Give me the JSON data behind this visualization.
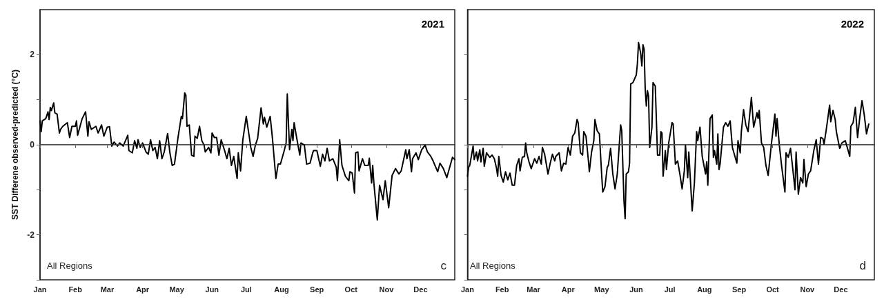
{
  "chart_data": [
    {
      "type": "line",
      "title": "2021",
      "ylabel": "SST Differene observed-predicted (°C)",
      "annotations": [
        "All Regions",
        "c"
      ],
      "xlim": [
        "2021-01-01",
        "2021-12-31"
      ],
      "xticks": [
        {
          "value": "2021-01-01",
          "label": "Jan"
        },
        {
          "value": "2021-02-01",
          "label": "Feb"
        },
        {
          "value": "2021-03-01",
          "label": "Mar"
        },
        {
          "value": "2021-04-01",
          "label": "Apr"
        },
        {
          "value": "2021-05-01",
          "label": "May"
        },
        {
          "value": "2021-06-01",
          "label": "Jun"
        },
        {
          "value": "2021-07-01",
          "label": "Jul"
        },
        {
          "value": "2021-08-01",
          "label": "Aug"
        },
        {
          "value": "2021-09-01",
          "label": "Sep"
        },
        {
          "value": "2021-10-01",
          "label": "Oct"
        },
        {
          "value": "2021-11-01",
          "label": "Nov"
        },
        {
          "value": "2021-12-01",
          "label": "Dec"
        }
      ],
      "ylim": [
        -3,
        3
      ],
      "yticks": [
        {
          "value": -3,
          "label": null
        },
        -2,
        {
          "value": -1,
          "label": null
        },
        0,
        {
          "value": 1,
          "label": null
        },
        2
      ],
      "grid": false,
      "marker": "none",
      "line_style": "solid",
      "ref_lines": [
        {
          "axis": "y",
          "value": 0,
          "color": "#555555",
          "line_style": "dashed"
        }
      ],
      "x": [
        "2021-01-01",
        "2021-01-02",
        "2021-01-03",
        "2021-01-06",
        "2021-01-08",
        "2021-01-09",
        "2021-01-10",
        "2021-01-11",
        "2021-01-13",
        "2021-01-14",
        "2021-01-16",
        "2021-01-18",
        "2021-01-19",
        "2021-01-21",
        "2021-01-25",
        "2021-01-27",
        "2021-01-29",
        "2021-02-01",
        "2021-02-02",
        "2021-02-03",
        "2021-02-07",
        "2021-02-10",
        "2021-02-12",
        "2021-02-13",
        "2021-02-15",
        "2021-02-19",
        "2021-02-21",
        "2021-02-24",
        "2021-02-26",
        "2021-03-01",
        "2021-03-03",
        "2021-03-05",
        "2021-03-07",
        "2021-03-10",
        "2021-03-12",
        "2021-03-15",
        "2021-03-19",
        "2021-03-20",
        "2021-03-23",
        "2021-03-25",
        "2021-03-27",
        "2021-03-28",
        "2021-03-30",
        "2021-04-01",
        "2021-04-04",
        "2021-04-06",
        "2021-04-08",
        "2021-04-10",
        "2021-04-12",
        "2021-04-14",
        "2021-04-16",
        "2021-04-18",
        "2021-04-20",
        "2021-04-23",
        "2021-04-25",
        "2021-04-27",
        "2021-04-29",
        "2021-05-02",
        "2021-05-05",
        "2021-05-06",
        "2021-05-08",
        "2021-05-09",
        "2021-05-10",
        "2021-05-12",
        "2021-05-14",
        "2021-05-16",
        "2021-05-17",
        "2021-05-19",
        "2021-05-21",
        "2021-05-23",
        "2021-05-25",
        "2021-05-26",
        "2021-05-29",
        "2021-05-31",
        "2021-06-01",
        "2021-06-03",
        "2021-06-05",
        "2021-06-07",
        "2021-06-09",
        "2021-06-12",
        "2021-06-14",
        "2021-06-16",
        "2021-06-18",
        "2021-06-20",
        "2021-06-23",
        "2021-06-24",
        "2021-06-26",
        "2021-06-28",
        "2021-07-01",
        "2021-07-03",
        "2021-07-05",
        "2021-07-07",
        "2021-07-09",
        "2021-07-11",
        "2021-07-14",
        "2021-07-16",
        "2021-07-17",
        "2021-07-19",
        "2021-07-22",
        "2021-07-24",
        "2021-07-27",
        "2021-07-29",
        "2021-07-31",
        "2021-08-03",
        "2021-08-05",
        "2021-08-06",
        "2021-08-08",
        "2021-08-10",
        "2021-08-11",
        "2021-08-12",
        "2021-08-14",
        "2021-08-17",
        "2021-08-18",
        "2021-08-21",
        "2021-08-23",
        "2021-08-26",
        "2021-08-28",
        "2021-08-29",
        "2021-09-01",
        "2021-09-04",
        "2021-09-06",
        "2021-09-08",
        "2021-09-10",
        "2021-09-12",
        "2021-09-15",
        "2021-09-18",
        "2021-09-19",
        "2021-09-21",
        "2021-09-23",
        "2021-09-26",
        "2021-09-29",
        "2021-09-30",
        "2021-10-02",
        "2021-10-04",
        "2021-10-05",
        "2021-10-07",
        "2021-10-08",
        "2021-10-11",
        "2021-10-13",
        "2021-10-16",
        "2021-10-17",
        "2021-10-19",
        "2021-10-20",
        "2021-10-21",
        "2021-10-24",
        "2021-10-26",
        "2021-10-29",
        "2021-10-31",
        "2021-11-03",
        "2021-11-06",
        "2021-11-09",
        "2021-11-12",
        "2021-11-14",
        "2021-11-18",
        "2021-11-19",
        "2021-11-21",
        "2021-11-23",
        "2021-11-24",
        "2021-11-27",
        "2021-11-29",
        "2021-12-02",
        "2021-12-05",
        "2021-12-07",
        "2021-12-10",
        "2021-12-12",
        "2021-12-16",
        "2021-12-18",
        "2021-12-21",
        "2021-12-24",
        "2021-12-29",
        "2021-12-31"
      ],
      "series": [
        {
          "color": "#000000",
          "values": [
            0.53,
            0.29,
            0.53,
            0.58,
            0.73,
            0.56,
            0.83,
            0.76,
            0.93,
            0.71,
            0.68,
            0.26,
            0.34,
            0.41,
            0.49,
            0.16,
            0.41,
            0.41,
            0.53,
            0.21,
            0.58,
            0.73,
            0.19,
            0.51,
            0.34,
            0.41,
            0.26,
            0.44,
            0.19,
            0.39,
            0.4,
            -0.03,
            0.06,
            -0.03,
            0.04,
            -0.03,
            0.21,
            -0.13,
            -0.18,
            0.09,
            -0.08,
            0.11,
            -0.06,
            0.04,
            -0.16,
            -0.21,
            0.11,
            -0.13,
            -0.06,
            -0.31,
            0.09,
            -0.31,
            -0.16,
            0.25,
            -0.18,
            -0.46,
            -0.43,
            0.14,
            0.63,
            0.58,
            1.15,
            1.1,
            0.41,
            0.44,
            -0.23,
            -0.26,
            0.19,
            0.14,
            0.41,
            0.09,
            -0.01,
            -0.16,
            -0.06,
            -0.18,
            0.26,
            0.16,
            0.16,
            -0.23,
            0.11,
            -0.13,
            -0.31,
            -0.08,
            -0.46,
            -0.26,
            -0.75,
            -0.18,
            -0.58,
            0.11,
            0.63,
            0.29,
            -0.06,
            -0.26,
            -0.01,
            0.14,
            0.82,
            0.46,
            0.61,
            0.39,
            0.63,
            0.14,
            -0.75,
            -0.43,
            -0.43,
            -0.16,
            0.04,
            1.13,
            -0.11,
            0.34,
            0.09,
            0.49,
            0.19,
            -0.23,
            0.04,
            -0.01,
            -0.43,
            -0.41,
            -0.21,
            -0.13,
            -0.13,
            -0.48,
            -0.21,
            -0.36,
            -0.08,
            -0.36,
            -0.31,
            -0.5,
            -0.8,
            0.11,
            -0.46,
            -0.7,
            -0.8,
            -0.6,
            -0.63,
            -1.07,
            -0.18,
            -0.16,
            -0.58,
            -0.31,
            -0.46,
            -0.46,
            -0.3,
            -0.85,
            -0.46,
            -0.85,
            -1.67,
            -0.9,
            -1.22,
            -0.8,
            -1.4,
            -0.68,
            -0.53,
            -0.65,
            -0.58,
            -0.11,
            -0.31,
            -0.11,
            -0.6,
            -0.31,
            -0.18,
            -0.33,
            -0.11,
            -0.01,
            -0.16,
            -0.26,
            -0.36,
            -0.6,
            -0.41,
            -0.53,
            -0.73,
            -0.28,
            -0.33
          ]
        }
      ]
    },
    {
      "type": "line",
      "title": "2022",
      "annotations": [
        "All Regions",
        "d"
      ],
      "tick_labels": "x",
      "xlim": [
        "2022-01-01",
        "2022-12-31"
      ],
      "xticks": [
        {
          "value": "2022-01-01",
          "label": "Jan"
        },
        {
          "value": "2022-02-01",
          "label": "Feb"
        },
        {
          "value": "2022-03-01",
          "label": "Mar"
        },
        {
          "value": "2022-04-01",
          "label": "Apr"
        },
        {
          "value": "2022-05-01",
          "label": "May"
        },
        {
          "value": "2022-06-01",
          "label": "Jun"
        },
        {
          "value": "2022-07-01",
          "label": "Jul"
        },
        {
          "value": "2022-08-01",
          "label": "Aug"
        },
        {
          "value": "2022-09-01",
          "label": "Sep"
        },
        {
          "value": "2022-10-01",
          "label": "Oct"
        },
        {
          "value": "2022-11-01",
          "label": "Nov"
        },
        {
          "value": "2022-12-01",
          "label": "Dec"
        }
      ],
      "ylim": [
        -3,
        3
      ],
      "yticks": [
        {
          "value": -3,
          "label": null
        },
        -2,
        {
          "value": -1,
          "label": null
        },
        0,
        {
          "value": 1,
          "label": null
        },
        2
      ],
      "grid": false,
      "marker": "none",
      "line_style": "solid",
      "ref_lines": [
        {
          "axis": "y",
          "value": 0,
          "color": "#555555",
          "line_style": "dashed"
        }
      ],
      "x": [
        "2022-01-01",
        "2022-01-02",
        "2022-01-03",
        "2022-01-06",
        "2022-01-07",
        "2022-01-09",
        "2022-01-10",
        "2022-01-12",
        "2022-01-13",
        "2022-01-15",
        "2022-01-16",
        "2022-01-18",
        "2022-01-21",
        "2022-01-23",
        "2022-01-25",
        "2022-01-27",
        "2022-01-28",
        "2022-01-29",
        "2022-01-31",
        "2022-02-02",
        "2022-02-04",
        "2022-02-06",
        "2022-02-08",
        "2022-02-10",
        "2022-02-12",
        "2022-02-14",
        "2022-02-16",
        "2022-02-17",
        "2022-02-19",
        "2022-02-21",
        "2022-02-22",
        "2022-02-23",
        "2022-02-25",
        "2022-02-27",
        "2022-03-02",
        "2022-03-04",
        "2022-03-06",
        "2022-03-08",
        "2022-03-09",
        "2022-03-11",
        "2022-03-14",
        "2022-03-16",
        "2022-03-18",
        "2022-03-20",
        "2022-03-21",
        "2022-03-24",
        "2022-03-26",
        "2022-03-28",
        "2022-03-30",
        "2022-04-01",
        "2022-04-03",
        "2022-04-05",
        "2022-04-07",
        "2022-04-09",
        "2022-04-10",
        "2022-04-12",
        "2022-04-14",
        "2022-04-15",
        "2022-04-17",
        "2022-04-19",
        "2022-04-20",
        "2022-04-22",
        "2022-04-24",
        "2022-04-25",
        "2022-04-27",
        "2022-04-29",
        "2022-05-01",
        "2022-05-02",
        "2022-05-04",
        "2022-05-06",
        "2022-05-07",
        "2022-05-09",
        "2022-05-11",
        "2022-05-13",
        "2022-05-15",
        "2022-05-18",
        "2022-05-19",
        "2022-05-21",
        "2022-05-22",
        "2022-05-23",
        "2022-05-25",
        "2022-05-26",
        "2022-05-27",
        "2022-05-29",
        "2022-06-01",
        "2022-06-02",
        "2022-06-03",
        "2022-06-05",
        "2022-06-06",
        "2022-06-07",
        "2022-06-08",
        "2022-06-09",
        "2022-06-10",
        "2022-06-11",
        "2022-06-12",
        "2022-06-13",
        "2022-06-15",
        "2022-06-16",
        "2022-06-18",
        "2022-06-20",
        "2022-06-22",
        "2022-06-23",
        "2022-06-24",
        "2022-06-25",
        "2022-06-27",
        "2022-06-28",
        "2022-06-30",
        "2022-07-01",
        "2022-07-03",
        "2022-07-04",
        "2022-07-06",
        "2022-07-08",
        "2022-07-10",
        "2022-07-12",
        "2022-07-14",
        "2022-07-15",
        "2022-07-17",
        "2022-07-18",
        "2022-07-21",
        "2022-07-23",
        "2022-07-25",
        "2022-07-26",
        "2022-07-28",
        "2022-07-30",
        "2022-08-02",
        "2022-08-03",
        "2022-08-04",
        "2022-08-06",
        "2022-08-08",
        "2022-08-09",
        "2022-08-10",
        "2022-08-12",
        "2022-08-13",
        "2022-08-14",
        "2022-08-15",
        "2022-08-18",
        "2022-08-20",
        "2022-08-22",
        "2022-08-24",
        "2022-08-26",
        "2022-08-30",
        "2022-08-31",
        "2022-09-02",
        "2022-09-03",
        "2022-09-05",
        "2022-09-07",
        "2022-09-09",
        "2022-09-12",
        "2022-09-14",
        "2022-09-17",
        "2022-09-18",
        "2022-09-19",
        "2022-09-21",
        "2022-09-23",
        "2022-09-25",
        "2022-09-27",
        "2022-09-30",
        "2022-10-03",
        "2022-10-04",
        "2022-10-05",
        "2022-10-07",
        "2022-10-09",
        "2022-10-12",
        "2022-10-13",
        "2022-10-15",
        "2022-10-17",
        "2022-10-19",
        "2022-10-21",
        "2022-10-22",
        "2022-10-24",
        "2022-10-26",
        "2022-10-28",
        "2022-10-29",
        "2022-10-31",
        "2022-11-02",
        "2022-11-04",
        "2022-11-07",
        "2022-11-09",
        "2022-11-11",
        "2022-11-13",
        "2022-11-15",
        "2022-11-16",
        "2022-11-18",
        "2022-11-21",
        "2022-11-22",
        "2022-11-24",
        "2022-11-26",
        "2022-11-27",
        "2022-11-30",
        "2022-12-02",
        "2022-12-05",
        "2022-12-07",
        "2022-12-09",
        "2022-12-10",
        "2022-12-12",
        "2022-12-14",
        "2022-12-16",
        "2022-12-18",
        "2022-12-20",
        "2022-12-22",
        "2022-12-24",
        "2022-12-26"
      ],
      "series": [
        {
          "color": "#000000",
          "values": [
            -0.7,
            -0.5,
            -0.46,
            -0.03,
            -0.33,
            -0.16,
            -0.36,
            -0.11,
            -0.38,
            -0.08,
            -0.48,
            -0.18,
            -0.28,
            -0.23,
            -0.31,
            -0.53,
            -0.7,
            -0.26,
            -0.68,
            -0.83,
            -0.6,
            -0.78,
            -0.63,
            -0.9,
            -0.9,
            -0.46,
            -0.31,
            -0.58,
            -0.28,
            -0.26,
            0.04,
            -0.18,
            -0.38,
            -0.53,
            -0.31,
            -0.41,
            -0.26,
            -0.43,
            -0.06,
            -0.21,
            -0.65,
            -0.41,
            -0.21,
            -0.36,
            -0.26,
            -0.18,
            -0.58,
            -0.41,
            -0.43,
            -0.06,
            -0.23,
            0.19,
            0.26,
            0.56,
            0.49,
            -0.18,
            -0.23,
            0.29,
            0.19,
            -0.31,
            -0.6,
            -0.16,
            0.09,
            0.56,
            0.31,
            0.24,
            -0.65,
            -1.05,
            -0.93,
            -0.5,
            -0.46,
            -0.08,
            -0.65,
            -0.98,
            -0.65,
            0.44,
            0.31,
            -1.25,
            -1.64,
            -0.65,
            -0.6,
            -0.41,
            1.35,
            1.38,
            1.55,
            1.8,
            2.27,
            2.02,
            1.75,
            2.22,
            2.12,
            1.23,
            0.86,
            1.2,
            1.08,
            -0.06,
            0.39,
            1.38,
            1.3,
            -0.23,
            -0.23,
            0.29,
            0.26,
            -0.7,
            -0.13,
            -0.55,
            0.04,
            0.19,
            0.49,
            0.46,
            -0.43,
            -0.36,
            -0.65,
            -0.98,
            -0.58,
            -0.01,
            -0.73,
            -0.16,
            -1.47,
            -0.85,
            0.29,
            0.09,
            0.39,
            -0.26,
            -0.65,
            -0.38,
            -0.9,
            0.58,
            0.66,
            -0.28,
            -0.13,
            -0.43,
            0.24,
            -0.55,
            -0.43,
            0.39,
            0.49,
            0.41,
            0.53,
            -0.06,
            -0.41,
            0.09,
            -0.18,
            0.29,
            0.78,
            0.44,
            0.29,
            1.05,
            0.39,
            0.71,
            0.58,
            0.76,
            0.04,
            -0.06,
            -0.46,
            -0.68,
            0.04,
            0.68,
            0.19,
            0.58,
            -0.01,
            -0.46,
            -1.05,
            -0.18,
            -0.28,
            -0.08,
            -0.53,
            -1.0,
            -0.16,
            -1.1,
            -0.73,
            -0.85,
            -0.33,
            -0.93,
            -0.65,
            -0.58,
            -0.11,
            0.11,
            -0.43,
            0.16,
            0.14,
            0.01,
            0.34,
            0.88,
            0.51,
            0.76,
            0.56,
            0.29,
            -0.08,
            0.04,
            0.09,
            -0.08,
            -0.26,
            0.41,
            0.49,
            0.83,
            0.16,
            0.61,
            0.98,
            0.66,
            0.24,
            0.46
          ]
        }
      ]
    }
  ]
}
